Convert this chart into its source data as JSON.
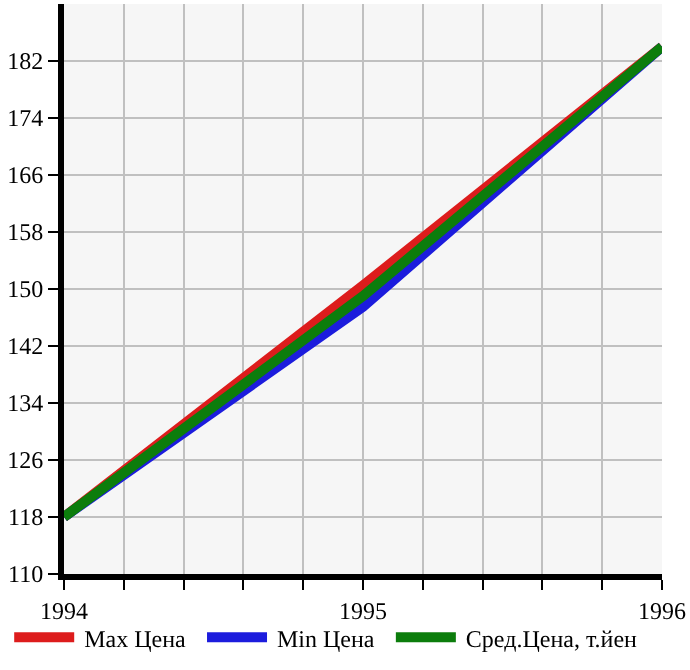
{
  "chart_data": {
    "type": "line",
    "x": [
      1994,
      1995,
      1996
    ],
    "series": [
      {
        "name": "Max Цена",
        "color": "#dd1c1c",
        "values": [
          118,
          150.5,
          184
        ]
      },
      {
        "name": "Min Цена",
        "color": "#1c1cdd",
        "values": [
          118,
          147.5,
          184
        ]
      },
      {
        "name": "Сред.Цена, т.йен",
        "color": "#0c7d0c",
        "values": [
          118,
          149,
          184
        ]
      }
    ],
    "xlim": [
      1994,
      1996
    ],
    "xticks": [
      1994,
      {
        "value": 1994.2,
        "label": null
      },
      {
        "value": 1994.4,
        "label": null
      },
      {
        "value": 1994.6,
        "label": null
      },
      {
        "value": 1994.8,
        "label": null
      },
      1995,
      {
        "value": 1995.2,
        "label": null
      },
      {
        "value": 1995.4,
        "label": null
      },
      {
        "value": 1995.6,
        "label": null
      },
      {
        "value": 1995.8,
        "label": null
      },
      1996
    ],
    "ylim": [
      110,
      190
    ],
    "yticks": [
      110,
      118,
      126,
      134,
      142,
      150,
      158,
      166,
      174,
      182
    ],
    "grid": true,
    "legend": "bottom",
    "marker": "none",
    "line_style": "solid"
  }
}
